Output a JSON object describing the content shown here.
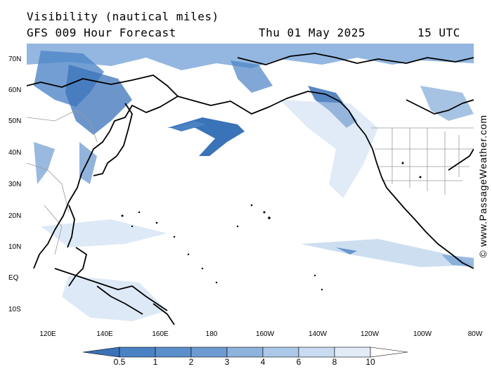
{
  "header": {
    "title": "Visibility (nautical miles)",
    "subtitle": "GFS 009 Hour Forecast",
    "date": "Thu 01 May 2025",
    "time": "15 UTC"
  },
  "map": {
    "lat_labels": [
      "70N",
      "60N",
      "50N",
      "40N",
      "30N",
      "20N",
      "10N",
      "EQ",
      "10S"
    ],
    "lon_labels": [
      "120E",
      "140E",
      "160E",
      "180",
      "160W",
      "140W",
      "120W",
      "100W",
      "80W"
    ],
    "credit": "© www.PassageWeather.com"
  },
  "legend": {
    "labels": [
      "0.5",
      "1",
      "2",
      "3",
      "4",
      "6",
      "8",
      "10"
    ],
    "colors": [
      "#3b73b9",
      "#4a82c4",
      "#6d9bd1",
      "#8eb3dd",
      "#acc8e8",
      "#c8dbf1",
      "#e2ecf8",
      "#ffffff"
    ]
  },
  "colors": {
    "land_outline": "#000000",
    "low_visibility": "#3b73b9",
    "haze": "#a9c6e8"
  }
}
